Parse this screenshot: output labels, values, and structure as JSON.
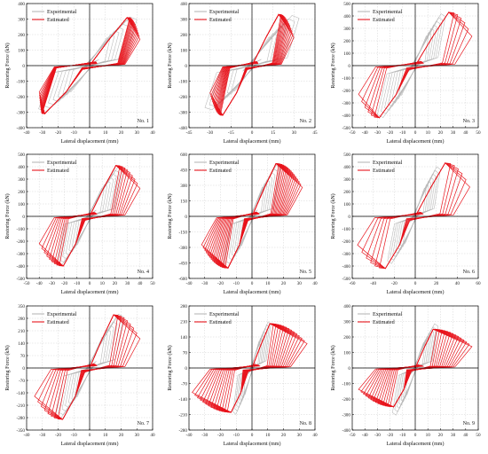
{
  "colors": {
    "experimental": "#b8b8b8",
    "estimated": "#e8141c",
    "axis": "#000000",
    "grid": "#c8c8c8"
  },
  "legend": {
    "experimental": "Experimental",
    "estimated": "Estimated",
    "placement": "top-left"
  },
  "xlabel": "Lateral displacement (mm)",
  "ylabel": "Restoring Force (kN)",
  "chart_data": [
    {
      "type": "line",
      "specimen": "No. 1",
      "xlim": [
        -40,
        40
      ],
      "ylim": [
        -400,
        400
      ],
      "xticks": [
        -40,
        -30,
        -20,
        -10,
        0,
        10,
        20,
        30,
        40
      ],
      "yticks": [
        -400,
        -300,
        -200,
        -100,
        0,
        100,
        200,
        300,
        400
      ],
      "exp_peak": [
        25,
        330
      ],
      "exp_neg": [
        -27,
        -310
      ],
      "est_peak": [
        25,
        310
      ],
      "est_neg": [
        -30,
        -310
      ],
      "x_end": 32,
      "x_start": -32,
      "cycles": 14,
      "grid": true
    },
    {
      "type": "line",
      "specimen": "No. 2",
      "xlim": [
        -45,
        45
      ],
      "ylim": [
        -400,
        400
      ],
      "xticks": [
        -45,
        -30,
        -15,
        0,
        15,
        30,
        45
      ],
      "yticks": [
        -400,
        -300,
        -200,
        -100,
        0,
        100,
        200,
        300,
        400
      ],
      "exp_peak": [
        28,
        340
      ],
      "exp_neg": [
        -28,
        -300
      ],
      "est_peak": [
        20,
        330
      ],
      "est_neg": [
        -22,
        -320
      ],
      "x_end": 30,
      "x_start": -30,
      "cycles": 14,
      "grid": true
    },
    {
      "type": "line",
      "specimen": "No. 3",
      "xlim": [
        -50,
        50
      ],
      "ylim": [
        -500,
        500
      ],
      "xticks": [
        -50,
        -40,
        -30,
        -20,
        -10,
        0,
        10,
        20,
        30,
        40,
        50
      ],
      "yticks": [
        -500,
        -400,
        -300,
        -200,
        -100,
        0,
        100,
        200,
        300,
        400,
        500
      ],
      "exp_peak": [
        20,
        440
      ],
      "exp_neg": [
        -25,
        -440
      ],
      "est_peak": [
        28,
        430
      ],
      "est_neg": [
        -30,
        -420
      ],
      "x_end": 45,
      "x_start": -45,
      "cycles": 6,
      "grid": true
    },
    {
      "type": "line",
      "specimen": "No. 4",
      "xlim": [
        -50,
        50
      ],
      "ylim": [
        -500,
        500
      ],
      "xticks": [
        -50,
        -40,
        -30,
        -20,
        -10,
        0,
        10,
        20,
        30,
        40,
        50
      ],
      "yticks": [
        -500,
        -400,
        -300,
        -200,
        -100,
        0,
        100,
        200,
        300,
        400,
        500
      ],
      "exp_peak": [
        22,
        420
      ],
      "exp_neg": [
        -22,
        -420
      ],
      "est_peak": [
        22,
        410
      ],
      "est_neg": [
        -22,
        -400
      ],
      "x_end": 40,
      "x_start": -40,
      "cycles": 9,
      "grid": true
    },
    {
      "type": "line",
      "specimen": "No. 5",
      "xlim": [
        -40,
        40
      ],
      "ylim": [
        -600,
        600
      ],
      "xticks": [
        -40,
        -30,
        -20,
        -10,
        0,
        10,
        20,
        30,
        40
      ],
      "yticks": [
        -600,
        -450,
        -300,
        -150,
        0,
        150,
        300,
        450,
        600
      ],
      "exp_peak": [
        15,
        520
      ],
      "exp_neg": [
        -15,
        -520
      ],
      "est_peak": [
        16,
        510
      ],
      "est_neg": [
        -16,
        -500
      ],
      "x_end": 32,
      "x_start": -32,
      "cycles": 16,
      "grid": true
    },
    {
      "type": "line",
      "specimen": "No. 6",
      "xlim": [
        -60,
        60
      ],
      "ylim": [
        -500,
        500
      ],
      "xticks": [
        -60,
        -40,
        -20,
        0,
        20,
        40,
        60
      ],
      "yticks": [
        -500,
        -400,
        -300,
        -200,
        -100,
        0,
        100,
        200,
        300,
        400,
        500
      ],
      "exp_peak": [
        20,
        420
      ],
      "exp_neg": [
        -22,
        -400
      ],
      "est_peak": [
        30,
        430
      ],
      "est_neg": [
        -30,
        -420
      ],
      "x_end": 52,
      "x_start": -55,
      "cycles": 6,
      "grid": true
    },
    {
      "type": "line",
      "specimen": "No. 7",
      "xlim": [
        -40,
        40
      ],
      "ylim": [
        -350,
        350
      ],
      "xticks": [
        -40,
        -30,
        -20,
        -10,
        0,
        10,
        20,
        30,
        40
      ],
      "yticks": [
        -350,
        -280,
        -210,
        -140,
        -70,
        0,
        70,
        140,
        210,
        280,
        350
      ],
      "exp_peak": [
        18,
        320
      ],
      "exp_neg": [
        -18,
        -300
      ],
      "est_peak": [
        16,
        300
      ],
      "est_neg": [
        -18,
        -290
      ],
      "x_end": 32,
      "x_start": -35,
      "cycles": 8,
      "grid": true
    },
    {
      "type": "line",
      "specimen": "No. 8",
      "xlim": [
        -40,
        40
      ],
      "ylim": [
        -280,
        280
      ],
      "xticks": [
        -40,
        -30,
        -20,
        -10,
        0,
        10,
        20,
        30,
        40
      ],
      "yticks": [
        -280,
        -210,
        -140,
        -70,
        0,
        70,
        140,
        210,
        280
      ],
      "exp_peak": [
        10,
        220
      ],
      "exp_neg": [
        -10,
        -220
      ],
      "est_peak": [
        12,
        200
      ],
      "est_neg": [
        -14,
        -200
      ],
      "x_end": 35,
      "x_start": -38,
      "cycles": 14,
      "grid": true
    },
    {
      "type": "line",
      "specimen": "No. 9",
      "xlim": [
        -50,
        50
      ],
      "ylim": [
        -400,
        400
      ],
      "xticks": [
        -50,
        -40,
        -30,
        -20,
        -10,
        0,
        10,
        20,
        30,
        40,
        50
      ],
      "yticks": [
        -400,
        -300,
        -200,
        -100,
        0,
        100,
        200,
        300,
        400
      ],
      "exp_peak": [
        15,
        300
      ],
      "exp_neg": [
        -15,
        -320
      ],
      "est_peak": [
        15,
        250
      ],
      "est_neg": [
        -18,
        -250
      ],
      "x_end": 45,
      "x_start": -45,
      "cycles": 14,
      "grid": true
    }
  ]
}
